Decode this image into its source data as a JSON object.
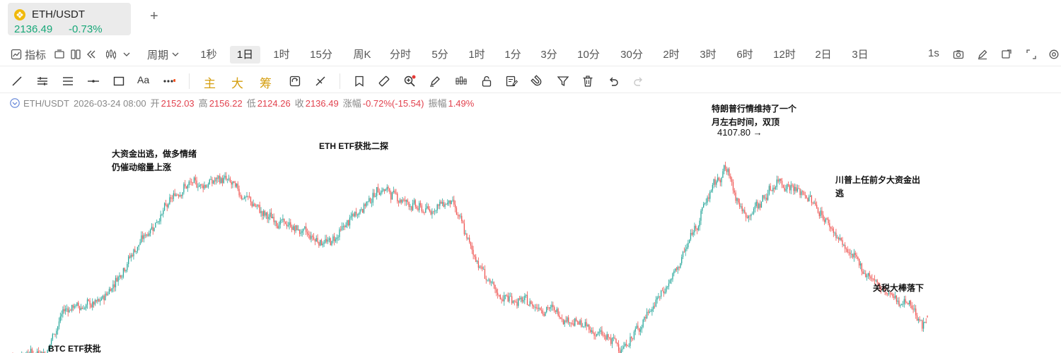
{
  "tab": {
    "symbol": "ETH/USDT",
    "price": "2136.49",
    "change": "-0.73%",
    "add_label": "+"
  },
  "toolbar": {
    "indicator_label": "指标",
    "period_label": "周期",
    "periods": [
      "1秒",
      "1日",
      "1时",
      "15分",
      "周K",
      "分时",
      "5分",
      "1时",
      "1分",
      "3分",
      "10分",
      "30分",
      "2时",
      "3时",
      "6时",
      "12时",
      "2日",
      "3日"
    ],
    "active_period": "1日",
    "right_label": "1s"
  },
  "drawing_toolbar": {
    "main_label": "主",
    "big_label": "大",
    "chip_label": "筹",
    "text_tool_label": "Aa"
  },
  "ohlc": {
    "symbol": "ETH/USDT",
    "datetime": "2026-03-24 08:00",
    "open_label": "开",
    "open": "2152.03",
    "high_label": "高",
    "high": "2156.22",
    "low_label": "低",
    "low": "2124.26",
    "close_label": "收",
    "close": "2136.49",
    "change_label": "涨幅",
    "change": "-0.72%(-15.54)",
    "amplitude_label": "振幅",
    "amplitude": "1.49%"
  },
  "chart": {
    "high_marker": "4107.80 →",
    "annotations": [
      {
        "lines": [
          "大资金出逃，做多情绪",
          "仍催动缩量上涨"
        ]
      },
      {
        "lines": [
          "ETH ETF获批二探"
        ]
      },
      {
        "lines": [
          "特朗普行情维持了一个",
          "月左右时间，双顶"
        ]
      },
      {
        "lines": [
          "川普上任前夕大资金出",
          "逃"
        ]
      },
      {
        "lines": [
          "关税大棒落下"
        ]
      },
      {
        "lines": [
          "BTC ETF获批"
        ]
      }
    ]
  },
  "colors": {
    "up": "#26a69a",
    "down": "#ef5350",
    "accent": "#d59e0f",
    "active_bg": "#ececec"
  },
  "chart_data": {
    "type": "candlestick",
    "symbol": "ETH/USDT",
    "interval": "1日",
    "y_axis_visible": false,
    "high_label_value": 4107.8,
    "trend_keypoints": [
      {
        "i": 0,
        "p": 1650
      },
      {
        "i": 30,
        "p": 1700
      },
      {
        "i": 45,
        "p": 2250
      },
      {
        "i": 72,
        "p": 2300
      },
      {
        "i": 98,
        "p": 2950
      },
      {
        "i": 135,
        "p": 3750
      },
      {
        "i": 170,
        "p": 3850
      },
      {
        "i": 200,
        "p": 3400
      },
      {
        "i": 250,
        "p": 3050
      },
      {
        "i": 290,
        "p": 3750
      },
      {
        "i": 325,
        "p": 3450
      },
      {
        "i": 345,
        "p": 3600
      },
      {
        "i": 360,
        "p": 3000
      },
      {
        "i": 380,
        "p": 2400
      },
      {
        "i": 420,
        "p": 2250
      },
      {
        "i": 480,
        "p": 1750
      },
      {
        "i": 520,
        "p": 2700
      },
      {
        "i": 545,
        "p": 3650
      },
      {
        "i": 558,
        "p": 4000
      },
      {
        "i": 574,
        "p": 3350
      },
      {
        "i": 600,
        "p": 3850
      },
      {
        "i": 625,
        "p": 3600
      },
      {
        "i": 655,
        "p": 2900
      },
      {
        "i": 685,
        "p": 2400
      },
      {
        "i": 704,
        "p": 2280
      },
      {
        "i": 712,
        "p": 2000
      },
      {
        "i": 716,
        "p": 2136
      }
    ]
  }
}
